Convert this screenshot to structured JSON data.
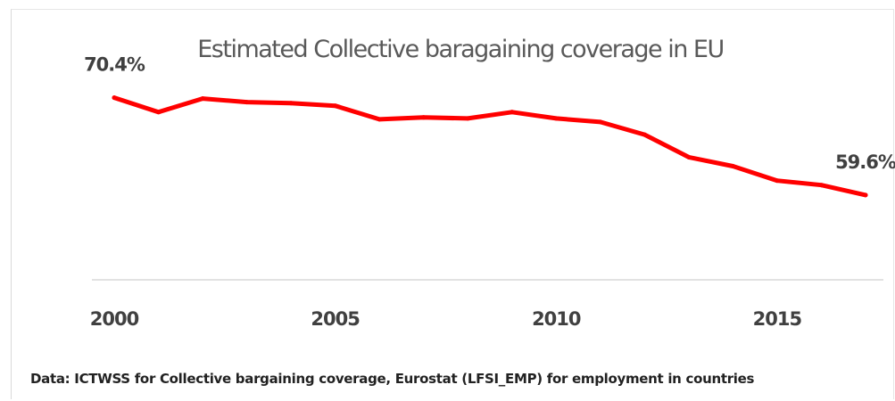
{
  "chart_data": {
    "type": "line",
    "title": "Estimated Collective baragaining coverage in EU",
    "xlabel": "",
    "ylabel": "",
    "x": [
      2000,
      2001,
      2002,
      2003,
      2004,
      2005,
      2006,
      2007,
      2008,
      2009,
      2010,
      2011,
      2012,
      2013,
      2014,
      2015,
      2016,
      2017
    ],
    "series": [
      {
        "values": [
          70.4,
          68.8,
          70.3,
          69.9,
          69.8,
          69.5,
          68.0,
          68.2,
          68.1,
          68.8,
          68.1,
          67.7,
          66.3,
          63.8,
          62.8,
          61.2,
          60.7,
          59.6
        ]
      }
    ],
    "x_ticks": [
      "2000",
      "2005",
      "2010",
      "2015"
    ],
    "data_labels": [
      {
        "x": 2000,
        "text": "70.4%"
      },
      {
        "x": 2017,
        "text": "59.6%"
      }
    ],
    "ylim": [
      50.2,
      75.3
    ],
    "grid": false,
    "line_color": "#ff0000",
    "axis_color": "#d9d9d9"
  },
  "source_note": "Data: ICTWSS for Collective bargaining coverage, Eurostat (LFSI_EMP) for employment in countries"
}
